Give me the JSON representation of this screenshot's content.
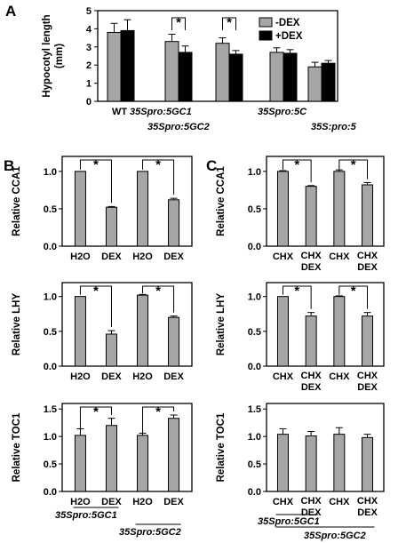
{
  "colors": {
    "gray": "#a6a6a6",
    "black": "#000000",
    "axis": "#000000"
  },
  "chart_data": [
    {
      "panel": "A",
      "type": "bar",
      "ylabel": "Hypocotyl length (mm)",
      "ylim": [
        0,
        5
      ],
      "yticks": [
        "0",
        "1",
        "2",
        "3",
        "4",
        "5"
      ],
      "categories": [
        "WT",
        "35Spro:5GC1",
        "35Spro:5GC2",
        "35Spro:5C",
        "35S:pro:5"
      ],
      "series": [
        {
          "name": "-DEX",
          "color": "#a6a6a6",
          "values": [
            3.8,
            3.3,
            3.2,
            2.7,
            1.9
          ],
          "errors": [
            0.5,
            0.4,
            0.3,
            0.25,
            0.25
          ]
        },
        {
          "name": "+DEX",
          "color": "#000000",
          "values": [
            3.9,
            2.7,
            2.6,
            2.65,
            2.1
          ],
          "errors": [
            0.6,
            0.35,
            0.2,
            0.2,
            0.15
          ]
        }
      ],
      "significance": [
        {
          "group": 1,
          "label": "*"
        },
        {
          "group": 2,
          "label": "*"
        }
      ],
      "legend": "top-right"
    },
    {
      "panel": "B",
      "type": "bar",
      "ylabel": "Relative CCA1",
      "ylim": [
        0,
        1.2
      ],
      "yticks": [
        "0.0",
        "0.5",
        "1.0"
      ],
      "categories": [
        "H2O",
        "DEX",
        "H2O",
        "DEX"
      ],
      "values": [
        1.0,
        0.52,
        1.0,
        0.62
      ],
      "errors": [
        0.0,
        0.01,
        0.0,
        0.02
      ],
      "significance": [
        {
          "from": 0,
          "to": 1,
          "label": "*"
        },
        {
          "from": 2,
          "to": 3,
          "label": "*"
        }
      ]
    },
    {
      "panel": "B",
      "type": "bar",
      "ylabel": "Relative LHY",
      "ylim": [
        0,
        1.2
      ],
      "yticks": [
        "0.0",
        "0.5",
        "1.0"
      ],
      "categories": [
        "H2O",
        "DEX",
        "H2O",
        "DEX"
      ],
      "values": [
        1.0,
        0.46,
        1.02,
        0.7
      ],
      "errors": [
        0.0,
        0.05,
        0.01,
        0.02
      ],
      "significance": [
        {
          "from": 0,
          "to": 1,
          "label": "*"
        },
        {
          "from": 2,
          "to": 3,
          "label": "*"
        }
      ]
    },
    {
      "panel": "B",
      "type": "bar",
      "ylabel": "Relative TOC1",
      "ylim": [
        0,
        1.6
      ],
      "yticks": [
        "0.0",
        "0.5",
        "1.0",
        "1.5"
      ],
      "categories": [
        "H2O",
        "DEX",
        "H2O",
        "DEX"
      ],
      "values": [
        1.02,
        1.2,
        1.02,
        1.33
      ],
      "errors": [
        0.12,
        0.13,
        0.04,
        0.06
      ],
      "significance": [
        {
          "from": 0,
          "to": 1,
          "label": "*"
        },
        {
          "from": 2,
          "to": 3,
          "label": "*"
        }
      ],
      "groups": [
        "35Spro:5GC1",
        "35Spro:5GC2"
      ]
    },
    {
      "panel": "C",
      "type": "bar",
      "ylabel": "Relative CCA1",
      "ylim": [
        0,
        1.2
      ],
      "yticks": [
        "0.0",
        "0.5",
        "1.0"
      ],
      "categories": [
        "CHX",
        "CHX\nDEX",
        "CHX",
        "CHX\nDEX"
      ],
      "values": [
        1.0,
        0.8,
        1.0,
        0.82
      ],
      "errors": [
        0.01,
        0.01,
        0.02,
        0.03
      ],
      "significance": [
        {
          "from": 0,
          "to": 1,
          "label": "*"
        },
        {
          "from": 2,
          "to": 3,
          "label": "*"
        }
      ]
    },
    {
      "panel": "C",
      "type": "bar",
      "ylabel": "Relative LHY",
      "ylim": [
        0,
        1.2
      ],
      "yticks": [
        "0.0",
        "0.5",
        "1.0"
      ],
      "categories": [
        "CHX",
        "CHX\nDEX",
        "CHX",
        "CHX\nDEX"
      ],
      "values": [
        1.0,
        0.72,
        1.0,
        0.72
      ],
      "errors": [
        0.0,
        0.05,
        0.01,
        0.05
      ],
      "significance": [
        {
          "from": 0,
          "to": 1,
          "label": "*"
        },
        {
          "from": 2,
          "to": 3,
          "label": "*"
        }
      ]
    },
    {
      "panel": "C",
      "type": "bar",
      "ylabel": "Relative TOC1",
      "ylim": [
        0,
        1.6
      ],
      "yticks": [
        "0.0",
        "0.5",
        "1.0",
        "1.5"
      ],
      "categories": [
        "CHX",
        "CHX\nDEX",
        "CHX",
        "CHX\nDEX"
      ],
      "values": [
        1.04,
        1.01,
        1.04,
        0.98
      ],
      "errors": [
        0.1,
        0.08,
        0.12,
        0.06
      ],
      "significance": [],
      "groups": [
        "35Spro:5GC1",
        "35Spro:5GC2"
      ]
    }
  ]
}
